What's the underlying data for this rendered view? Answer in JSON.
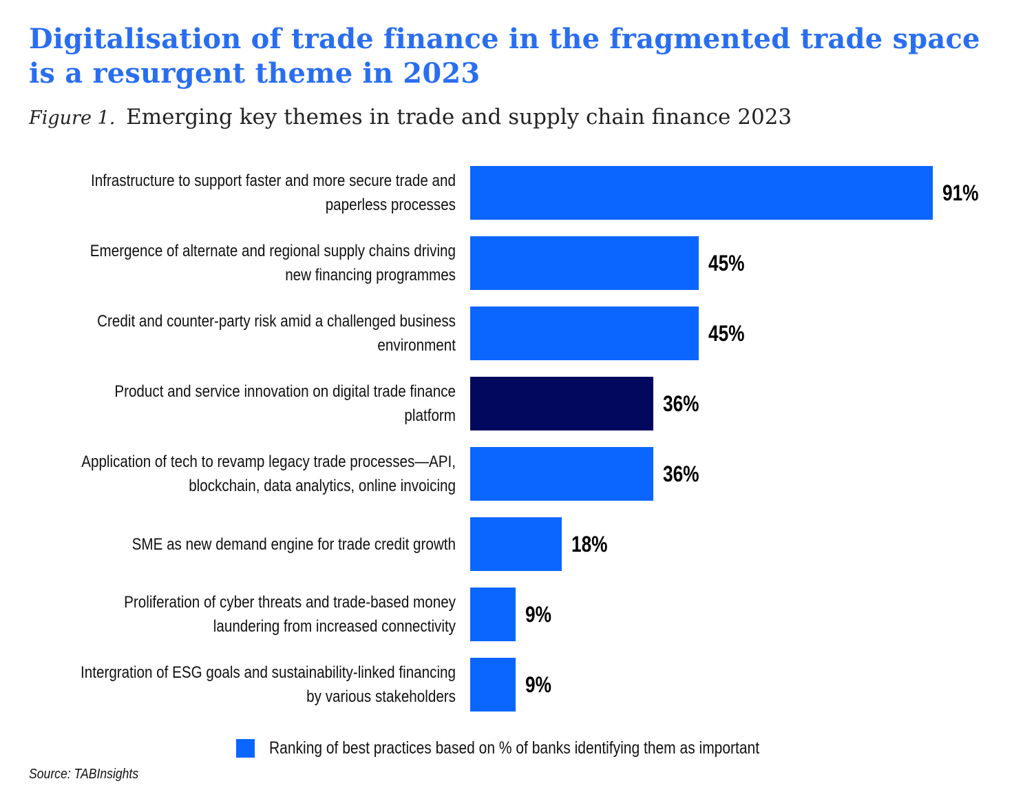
{
  "header": {
    "title": "Digitalisation of trade finance in the fragmented trade space is a resurgent theme in 2023",
    "figure_label": "Figure 1.",
    "figure_caption": "Emerging key themes in trade and supply chain finance 2023"
  },
  "chart_data": {
    "type": "bar",
    "orientation": "horizontal",
    "title": "Emerging key themes in trade and supply chain finance 2023",
    "xlabel": "",
    "ylabel": "",
    "grid": false,
    "legend_position": "bottom",
    "categories": [
      "Infrastructure to support faster and more secure trade and paperless processes",
      "Emergence of alternate and regional supply chains driving new financing programmes",
      "Credit and counter-party risk amid a challenged business environment",
      "Product and service innovation on digital trade finance platform",
      "Application of tech to revamp legacy trade processes—API, blockchain, data analytics, online invoicing",
      "SME as new demand engine for trade credit growth",
      "Proliferation of cyber threats and trade-based money laundering from increased connectivity",
      "Intergration of ESG goals and sustainability-linked financing by various stakeholders"
    ],
    "values": [
      91,
      45,
      45,
      36,
      36,
      18,
      9,
      9
    ],
    "value_labels": [
      "91%",
      "45%",
      "45%",
      "36%",
      "36%",
      "18%",
      "9%",
      "9%"
    ],
    "bar_colors": [
      "#0a66ff",
      "#0a66ff",
      "#0a66ff",
      "#02085e",
      "#0a66ff",
      "#0a66ff",
      "#0a66ff",
      "#0a66ff"
    ],
    "series": [
      {
        "name": "Ranking of best practices based on % of banks identifying them as important",
        "color": "#0a66ff"
      }
    ]
  },
  "legend": {
    "text": "Ranking of best practices based on % of banks identifying them as important",
    "color": "#0a66ff"
  },
  "source": {
    "text": "Source: TABInsights"
  },
  "colors": {
    "title": "#2a6ef0",
    "bar": "#0a66ff",
    "highlight_bar": "#02085e"
  }
}
